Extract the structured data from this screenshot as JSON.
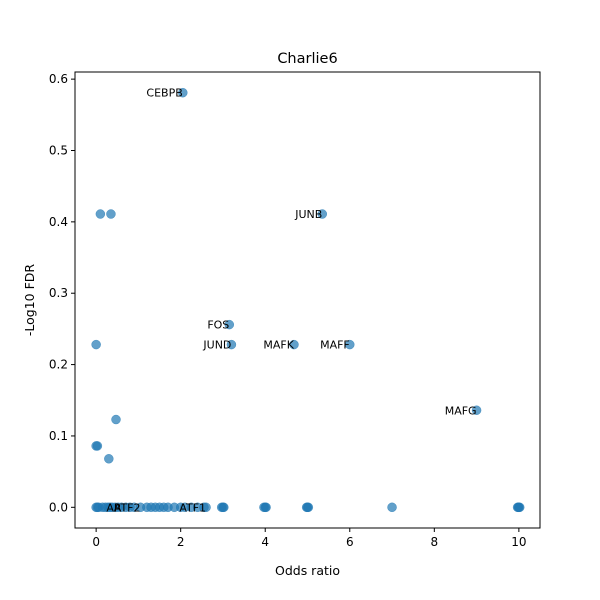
{
  "chart_data": {
    "type": "scatter",
    "title": "Charlie6",
    "xlabel": "Odds ratio",
    "ylabel": "-Log10 FDR",
    "xlim": [
      -0.5,
      10.5
    ],
    "ylim": [
      -0.029,
      0.61
    ],
    "xticks": [
      0,
      2,
      4,
      6,
      8,
      10
    ],
    "xtick_labels": [
      "0",
      "2",
      "4",
      "6",
      "8",
      "10"
    ],
    "yticks": [
      0.0,
      0.1,
      0.2,
      0.3,
      0.4,
      0.5,
      0.6
    ],
    "ytick_labels": [
      "0.0",
      "0.1",
      "0.2",
      "0.3",
      "0.4",
      "0.5",
      "0.6"
    ],
    "grid": false,
    "marker_color": "#1f77b4",
    "marker_alpha": 0.7,
    "points": [
      {
        "x": 2.05,
        "y": 0.581,
        "label": "CEBPB"
      },
      {
        "x": 5.35,
        "y": 0.411,
        "label": "JUNB"
      },
      {
        "x": 0.1,
        "y": 0.411
      },
      {
        "x": 0.35,
        "y": 0.411
      },
      {
        "x": 3.15,
        "y": 0.256,
        "label": "FOS"
      },
      {
        "x": 3.2,
        "y": 0.228,
        "label": "JUND"
      },
      {
        "x": 4.68,
        "y": 0.228,
        "label": "MAFK"
      },
      {
        "x": 6.0,
        "y": 0.228,
        "label": "MAFF"
      },
      {
        "x": 0.0,
        "y": 0.228
      },
      {
        "x": 9.0,
        "y": 0.136,
        "label": "MAFG"
      },
      {
        "x": 0.47,
        "y": 0.123
      },
      {
        "x": 0.0,
        "y": 0.086
      },
      {
        "x": 0.03,
        "y": 0.086
      },
      {
        "x": 0.3,
        "y": 0.068
      },
      {
        "x": 1.05,
        "y": 0.0,
        "label": "ATF2"
      },
      {
        "x": 2.6,
        "y": 0.0,
        "label": "ATF1"
      },
      {
        "x": 0.6,
        "y": 0.0,
        "label": "AR"
      },
      {
        "x": 0.0,
        "y": 0.0
      },
      {
        "x": 0.03,
        "y": 0.0
      },
      {
        "x": 0.06,
        "y": 0.0
      },
      {
        "x": 0.15,
        "y": 0.0
      },
      {
        "x": 0.22,
        "y": 0.0
      },
      {
        "x": 0.28,
        "y": 0.0
      },
      {
        "x": 0.33,
        "y": 0.0
      },
      {
        "x": 0.38,
        "y": 0.0
      },
      {
        "x": 0.45,
        "y": 0.0
      },
      {
        "x": 0.52,
        "y": 0.0
      },
      {
        "x": 0.7,
        "y": 0.0
      },
      {
        "x": 0.8,
        "y": 0.0
      },
      {
        "x": 0.9,
        "y": 0.0
      },
      {
        "x": 1.2,
        "y": 0.0
      },
      {
        "x": 1.3,
        "y": 0.0
      },
      {
        "x": 1.4,
        "y": 0.0
      },
      {
        "x": 1.5,
        "y": 0.0
      },
      {
        "x": 1.6,
        "y": 0.0
      },
      {
        "x": 1.7,
        "y": 0.0
      },
      {
        "x": 1.85,
        "y": 0.0
      },
      {
        "x": 2.0,
        "y": 0.0
      },
      {
        "x": 2.1,
        "y": 0.0
      },
      {
        "x": 2.25,
        "y": 0.0
      },
      {
        "x": 2.4,
        "y": 0.0
      },
      {
        "x": 2.55,
        "y": 0.0
      },
      {
        "x": 2.97,
        "y": 0.0
      },
      {
        "x": 3.0,
        "y": 0.0
      },
      {
        "x": 3.02,
        "y": 0.0
      },
      {
        "x": 3.97,
        "y": 0.0
      },
      {
        "x": 4.0,
        "y": 0.0
      },
      {
        "x": 4.02,
        "y": 0.0
      },
      {
        "x": 4.98,
        "y": 0.0
      },
      {
        "x": 5.0,
        "y": 0.0
      },
      {
        "x": 5.02,
        "y": 0.0
      },
      {
        "x": 7.0,
        "y": 0.0
      },
      {
        "x": 9.97,
        "y": 0.0
      },
      {
        "x": 9.99,
        "y": 0.0
      },
      {
        "x": 10.0,
        "y": 0.0
      },
      {
        "x": 10.02,
        "y": 0.0
      }
    ]
  }
}
